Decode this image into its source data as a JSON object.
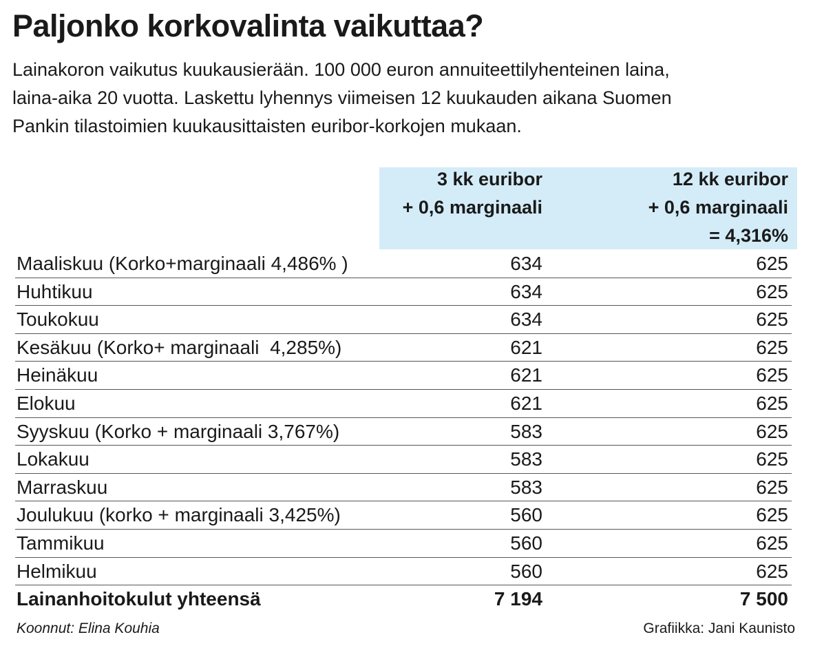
{
  "header": {
    "title": "Paljonko korkovalinta vaikuttaa?",
    "subtitle_lines": [
      "Lainakoron vaikutus kuukausierään. 100 000 euron annuiteettilyhenteinen laina,",
      "laina-aika 20 vuotta. Laskettu lyhennys viimeisen 12 kuukauden aikana Suomen",
      "Pankin tilastoimien kuukausittaisten euribor-korkojen mukaan."
    ]
  },
  "table": {
    "columns": [
      [
        "3 kk euribor",
        "+ 0,6 marginaali"
      ],
      [
        "12 kk euribor",
        "+ 0,6 marginaali",
        "= 4,316%"
      ]
    ],
    "rows": [
      [
        "Maaliskuu (Korko+marginaali 4,486% )",
        634,
        625
      ],
      [
        "Huhtikuu",
        634,
        625
      ],
      [
        "Toukokuu",
        634,
        625
      ],
      [
        "Kesäkuu (Korko+ marginaali  4,285%)",
        621,
        625
      ],
      [
        "Heinäkuu",
        621,
        625
      ],
      [
        "Elokuu",
        621,
        625
      ],
      [
        "Syyskuu (Korko + marginaali 3,767%)",
        583,
        625
      ],
      [
        "Lokakuu",
        583,
        625
      ],
      [
        "Marraskuu",
        583,
        625
      ],
      [
        "Joulukuu (korko + marginaali 3,425%)",
        560,
        625
      ],
      [
        "Tammikuu",
        560,
        625
      ],
      [
        "Helmikuu",
        560,
        625
      ]
    ],
    "total": [
      "Lainanhoitokulut yhteensä",
      "7 194",
      "7 500"
    ]
  },
  "footer": {
    "left": "Koonnut: Elina Kouhia",
    "right": "Grafiikka: Jani Kaunisto"
  }
}
